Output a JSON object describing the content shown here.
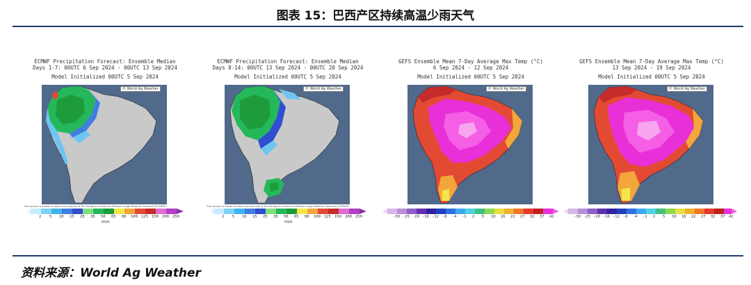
{
  "figure": {
    "title": "图表 15：巴西产区持续高温少雨天气",
    "source": "资料来源：World Ag Weather"
  },
  "colors": {
    "rule": "#1f3b6b",
    "ocean": "#51698a",
    "land": "#c9c9c9"
  },
  "panels": [
    {
      "line1": "ECMWF Precipitation Forecast: Ensemble Median",
      "line2": "Days 1-7: 00UTC 6 Sep 2024 - 00UTC 13 Sep 2024",
      "line3": "Model Initialized 00UTC 5 Sep 2024",
      "logo": "© World Ag Weather",
      "disclaimer": "This service is based on data and products of the European Centre for Medium-range Weather Forecasts (ECMWF)",
      "unit": "mm",
      "colorbar": [
        "2",
        "5",
        "10",
        "15",
        "25",
        "35",
        "50",
        "65",
        "80",
        "100",
        "125",
        "150",
        "200",
        "250"
      ]
    },
    {
      "line1": "ECMWF Precipitation Forecast: Ensemble Median",
      "line2": "Days 8-14: 00UTC 13 Sep 2024 - 00UTC 20 Sep 2024",
      "line3": "Model Initialized 00UTC 5 Sep 2024",
      "logo": "© World Ag Weather",
      "disclaimer": "This service is based on data and products of the European Centre for Medium-range Weather Forecasts (ECMWF)",
      "unit": "mm",
      "colorbar": [
        "2",
        "5",
        "10",
        "15",
        "25",
        "35",
        "50",
        "65",
        "80",
        "100",
        "125",
        "150",
        "200",
        "250"
      ]
    },
    {
      "line1": "GEFS Ensemble Mean 7-Day Average Max Temp (°C)",
      "line2": "6 Sep 2024 - 12 Sep 2024",
      "line3": "Model Initialized 00UTC 5 Sep 2024",
      "logo": "© World Ag Weather",
      "colorbar": [
        "-30",
        "-25",
        "-20",
        "-16",
        "-12",
        "-8",
        "-4",
        "-1",
        "2",
        "5",
        "10",
        "16",
        "22",
        "27",
        "32",
        "37",
        "42"
      ]
    },
    {
      "line1": "GEFS Ensemble Mean 7-Day Average Max Temp (°C)",
      "line2": "13 Sep 2024 - 19 Sep 2024",
      "line3": "Model Initialized 00UTC 5 Sep 2024",
      "logo": "© World Ag Weather",
      "colorbar": [
        "-30",
        "-25",
        "-20",
        "-16",
        "-12",
        "-8",
        "-4",
        "-1",
        "2",
        "5",
        "10",
        "16",
        "22",
        "27",
        "32",
        "37",
        "42"
      ]
    }
  ]
}
